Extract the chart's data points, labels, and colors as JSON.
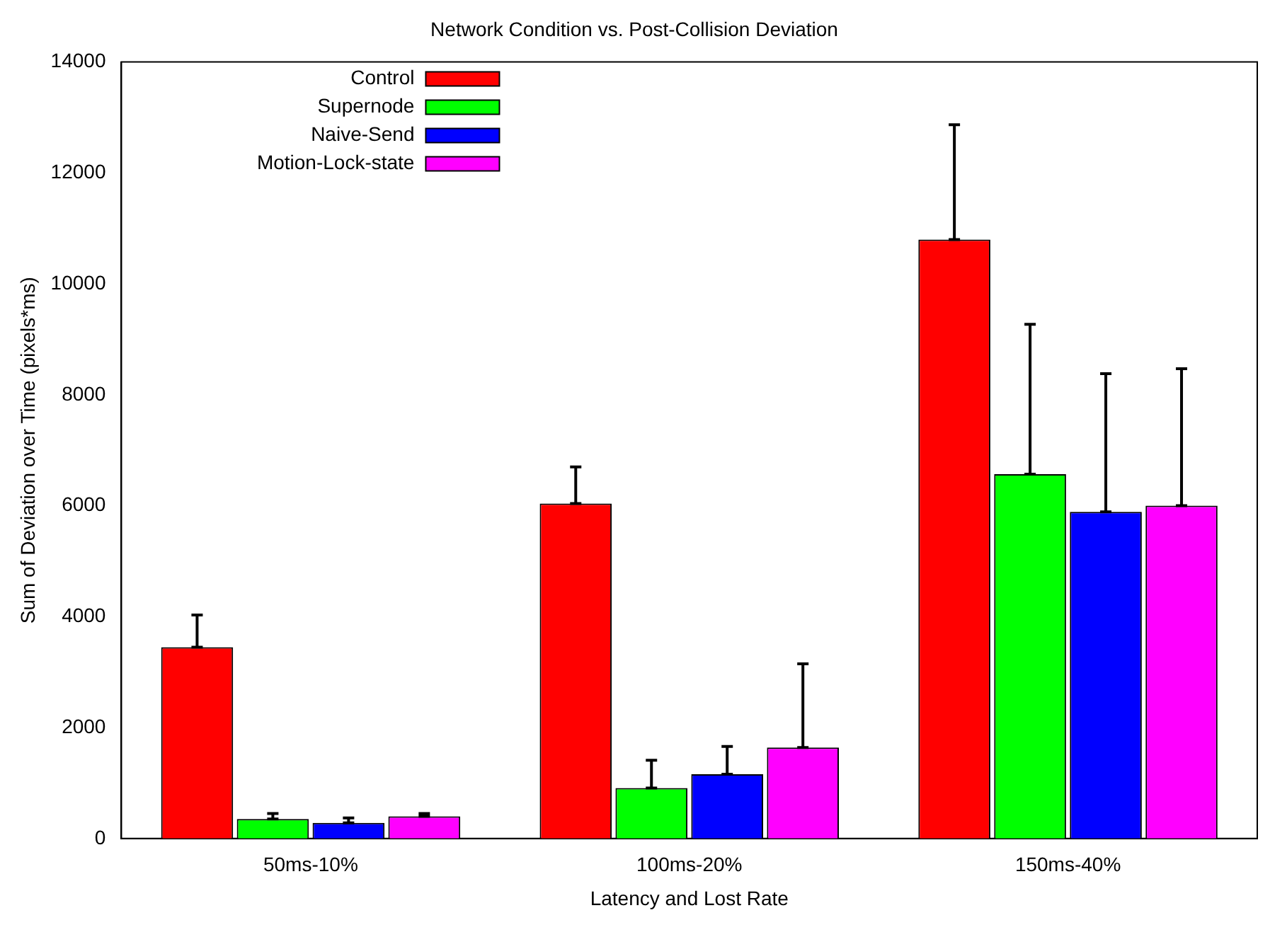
{
  "chart_data": {
    "type": "bar",
    "title": "Network Condition vs. Post-Collision Deviation",
    "xlabel": "Latency and Lost Rate",
    "ylabel": "Sum of Deviation over Time (pixels*ms)",
    "categories": [
      "50ms-10%",
      "100ms-20%",
      "150ms-40%"
    ],
    "series": [
      {
        "name": "Control",
        "color": "#ff0000",
        "values": [
          3450,
          6040,
          10800
        ],
        "errors": [
          [
            3450,
            4030
          ],
          [
            6040,
            6700
          ],
          [
            10800,
            12870
          ]
        ]
      },
      {
        "name": "Supernode",
        "color": "#00ff00",
        "values": [
          350,
          910,
          6570
        ],
        "errors": [
          [
            350,
            450
          ],
          [
            910,
            1410
          ],
          [
            6570,
            9270
          ]
        ]
      },
      {
        "name": "Naive-Send",
        "color": "#0000ff",
        "values": [
          280,
          1160,
          5890
        ],
        "errors": [
          [
            280,
            370
          ],
          [
            1160,
            1660
          ],
          [
            5890,
            8380
          ]
        ]
      },
      {
        "name": "Motion-Lock-state",
        "color": "#ff00ff",
        "values": [
          400,
          1640,
          6000
        ],
        "errors": [
          [
            400,
            450
          ],
          [
            1640,
            3150
          ],
          [
            6000,
            8470
          ]
        ]
      }
    ],
    "ylim": [
      0,
      14000
    ],
    "yticks": [
      0,
      2000,
      4000,
      6000,
      8000,
      10000,
      12000,
      14000
    ],
    "grid": false,
    "legend": "top left"
  }
}
